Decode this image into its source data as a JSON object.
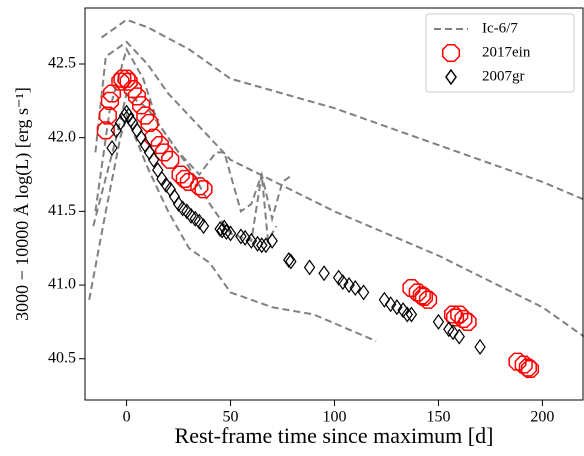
{
  "chart_data": {
    "type": "scatter",
    "xlabel": "Rest-frame time since maximum [d]",
    "ylabel": "3000 − 10000 Å log(L) [erg s⁻¹]",
    "xlim": [
      -20,
      220
    ],
    "ylim": [
      40.22,
      42.88
    ],
    "xticks": [
      0,
      50,
      100,
      150,
      200
    ],
    "yticks": [
      40.5,
      {
        "value": 41,
        "label": "41.0"
      },
      41.5,
      {
        "value": 42,
        "label": "42.0"
      },
      42.5
    ],
    "legend": "upper right",
    "series": [
      {
        "name": "Ic-6/7",
        "kind": "line",
        "dash": true,
        "color": "#808080",
        "x": [
          -12,
          -5,
          0,
          10,
          30,
          50,
          100,
          150,
          200,
          220,
          null,
          -15,
          -10,
          -5,
          0,
          10,
          20,
          40,
          50,
          100,
          150,
          200,
          220,
          null,
          -15,
          -8,
          0,
          8,
          15,
          25,
          35,
          43,
          47,
          55,
          60,
          65,
          70,
          75,
          80,
          null,
          -16,
          -5,
          0,
          10,
          20,
          30,
          40,
          50,
          60,
          65,
          68,
          72,
          null,
          -18,
          -10,
          -3,
          0,
          10,
          20,
          30,
          40,
          50,
          70,
          90,
          120
        ],
        "values": [
          42.68,
          42.75,
          42.8,
          42.75,
          42.6,
          42.4,
          42.2,
          41.95,
          41.7,
          41.58,
          null,
          41.9,
          42.55,
          42.6,
          42.65,
          42.5,
          42.3,
          42.0,
          41.85,
          41.5,
          41.2,
          40.85,
          40.65,
          null,
          41.5,
          42.2,
          42.6,
          42.4,
          42.1,
          41.9,
          41.75,
          41.9,
          41.9,
          41.5,
          41.55,
          41.75,
          41.45,
          41.7,
          41.75,
          null,
          41.4,
          42.0,
          42.3,
          42.2,
          42.0,
          41.8,
          41.55,
          41.35,
          41.3,
          41.75,
          41.3,
          41.4,
          null,
          40.9,
          41.5,
          42.0,
          42.15,
          41.8,
          41.5,
          41.25,
          41.15,
          40.95,
          40.85,
          40.8,
          40.62
        ]
      },
      {
        "name": "2017ein",
        "kind": "marker",
        "marker": "octagon",
        "color": "#ff0000",
        "x": [
          -10,
          -9,
          -8,
          -7,
          -3,
          -2,
          0,
          1,
          3,
          5,
          7,
          9,
          11,
          13,
          16,
          18,
          21,
          26,
          28,
          30,
          35,
          37,
          137,
          140,
          142,
          143,
          145,
          157,
          158,
          160,
          162,
          164,
          188,
          191,
          193,
          194
        ],
        "values": [
          42.05,
          42.15,
          42.25,
          42.3,
          42.38,
          42.4,
          42.4,
          42.38,
          42.33,
          42.28,
          42.22,
          42.15,
          42.1,
          42.0,
          41.95,
          41.9,
          41.85,
          41.75,
          41.72,
          41.7,
          41.67,
          41.65,
          40.98,
          40.95,
          40.93,
          40.92,
          40.9,
          40.8,
          40.78,
          40.8,
          40.77,
          40.75,
          40.48,
          40.46,
          40.44,
          40.43
        ]
      },
      {
        "name": "2007gr",
        "kind": "marker",
        "marker": "diamond",
        "color": "#000000",
        "x": [
          -7,
          -5,
          -3,
          -1,
          0,
          1,
          2,
          3,
          5,
          7,
          9,
          11,
          13,
          15,
          17,
          19,
          21,
          23,
          25,
          27,
          29,
          31,
          33,
          35,
          37,
          45,
          46,
          47,
          48,
          50,
          55,
          57,
          60,
          63,
          65,
          67,
          70,
          78,
          79,
          88,
          95,
          102,
          104,
          107,
          110,
          114,
          124,
          127,
          130,
          133,
          135,
          137,
          150,
          155,
          157,
          160,
          170
        ],
        "values": [
          41.93,
          42.05,
          42.1,
          42.15,
          42.17,
          42.15,
          42.12,
          42.1,
          42.05,
          42.0,
          41.95,
          41.9,
          41.85,
          41.78,
          41.72,
          41.68,
          41.65,
          41.6,
          41.55,
          41.52,
          41.5,
          41.47,
          41.45,
          41.43,
          41.4,
          41.38,
          41.37,
          41.39,
          41.36,
          41.35,
          41.33,
          41.32,
          41.3,
          41.28,
          41.27,
          41.27,
          41.3,
          41.17,
          41.16,
          41.12,
          41.08,
          41.05,
          41.02,
          41.0,
          40.98,
          40.95,
          40.9,
          40.87,
          40.85,
          40.83,
          40.8,
          40.8,
          40.75,
          40.7,
          40.68,
          40.65,
          40.58
        ]
      }
    ]
  }
}
